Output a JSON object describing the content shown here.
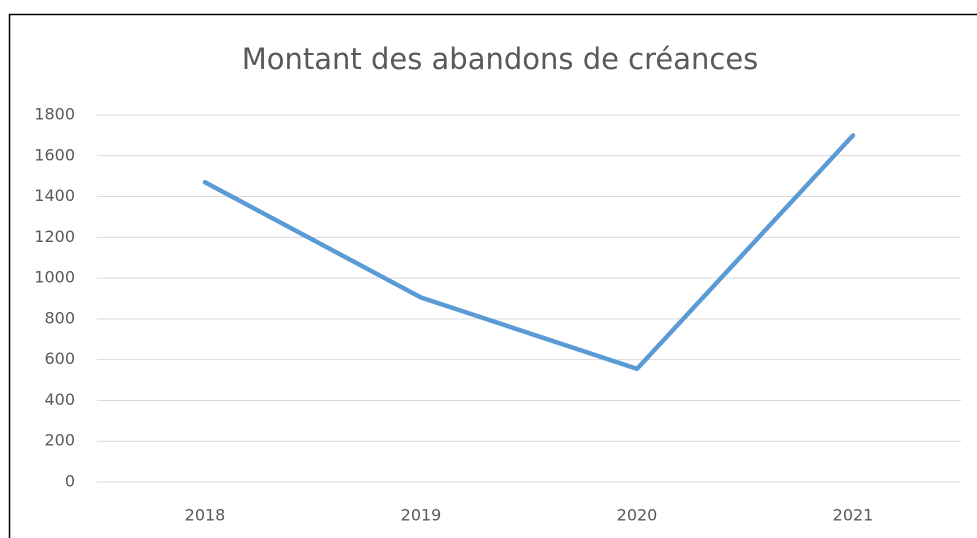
{
  "chart_data": {
    "type": "line",
    "title": "Montant des abandons de créances",
    "categories": [
      "2018",
      "2019",
      "2020",
      "2021"
    ],
    "values": [
      1470,
      905,
      555,
      1700
    ],
    "color": "#5b9bd5",
    "ylim": [
      0,
      1800
    ],
    "yticks": [
      0,
      200,
      400,
      600,
      800,
      1000,
      1200,
      1400,
      1600,
      1800
    ],
    "grid": true
  }
}
